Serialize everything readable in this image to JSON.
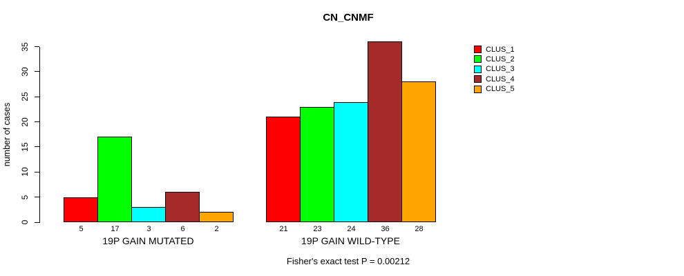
{
  "chart_data": {
    "type": "bar",
    "title": "CN_CNMF",
    "ylabel": "number of cases",
    "xlabel": "",
    "ylim": [
      0,
      35
    ],
    "yticks": [
      0,
      5,
      10,
      15,
      20,
      25,
      30,
      35
    ],
    "grid": false,
    "legend_position": "right-outside",
    "categories": [
      "19P GAIN MUTATED",
      "19P GAIN WILD-TYPE"
    ],
    "series": [
      {
        "name": "CLUS_1",
        "color": "#FF0000",
        "values": [
          5,
          21
        ]
      },
      {
        "name": "CLUS_2",
        "color": "#00FF00",
        "values": [
          17,
          23
        ]
      },
      {
        "name": "CLUS_3",
        "color": "#00FFFF",
        "values": [
          3,
          24
        ]
      },
      {
        "name": "CLUS_4",
        "color": "#A52A2A",
        "values": [
          6,
          36
        ]
      },
      {
        "name": "CLUS_5",
        "color": "#FFA500",
        "values": [
          2,
          28
        ]
      }
    ],
    "bar_value_labels": {
      "19P GAIN MUTATED": [
        5,
        17,
        3,
        6,
        2
      ],
      "19P GAIN WILD-TYPE": [
        21,
        23,
        24,
        36,
        28
      ]
    },
    "annotation": "Fisher's exact test P = 0.00212",
    "colors": {
      "background": "#FFFFFF",
      "axis": "#000000",
      "text": "#000000"
    }
  }
}
